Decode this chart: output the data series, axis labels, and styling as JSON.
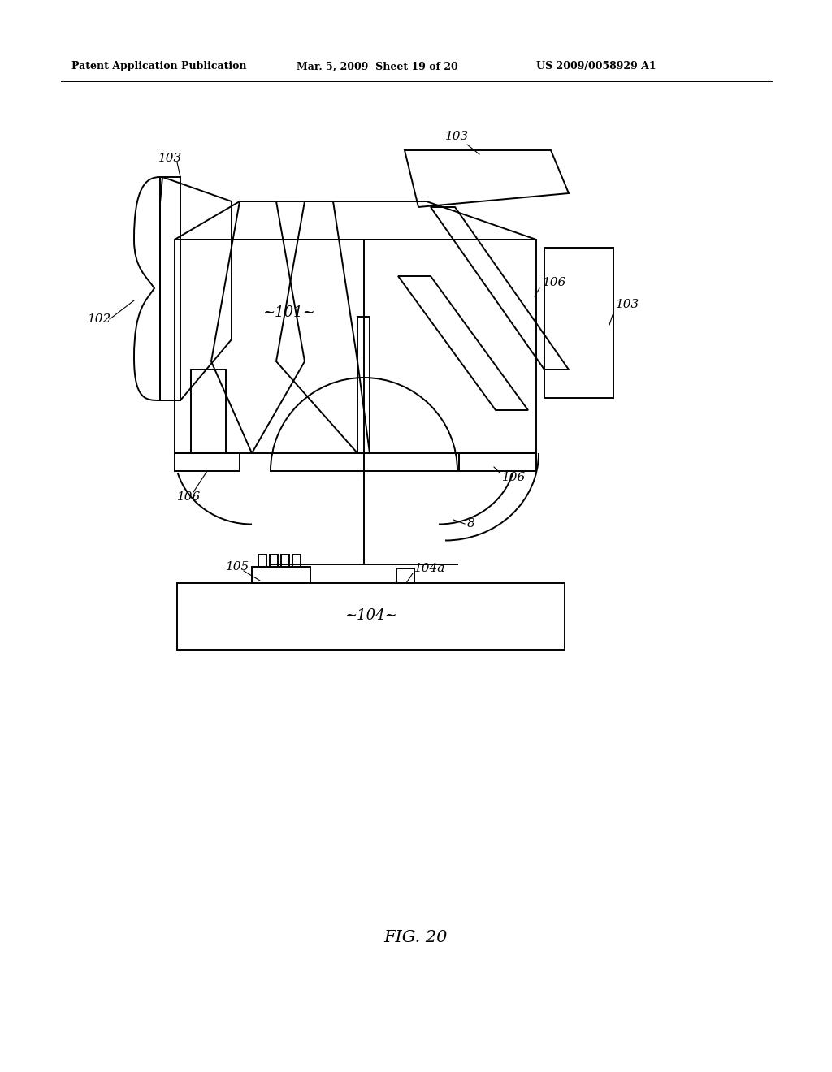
{
  "bg_color": "#ffffff",
  "line_color": "#000000",
  "header_left": "Patent Application Publication",
  "header_mid": "Mar. 5, 2009  Sheet 19 of 20",
  "header_right": "US 2009/0058929 A1",
  "fig_label": "FIG. 20"
}
